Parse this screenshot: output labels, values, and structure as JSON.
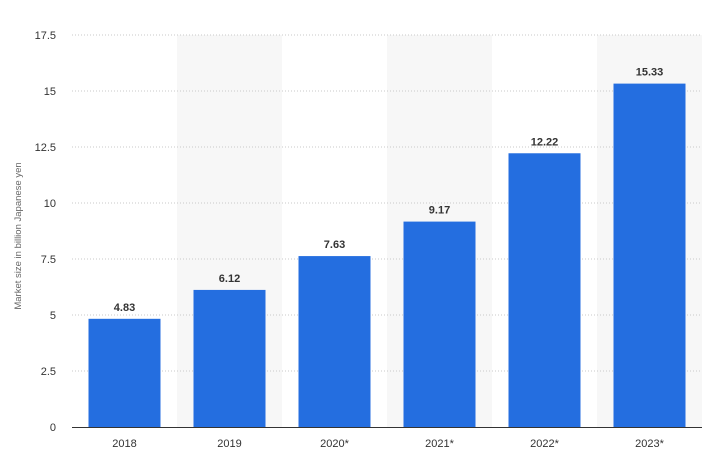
{
  "chart_data": {
    "type": "bar",
    "title": "",
    "xlabel": "",
    "ylabel": "Market size in billion Japanese yen",
    "categories": [
      "2018",
      "2019",
      "2020*",
      "2021*",
      "2022*",
      "2023*"
    ],
    "values": [
      4.83,
      6.12,
      7.63,
      9.17,
      12.22,
      15.33
    ],
    "value_labels": [
      "4.83",
      "6.12",
      "7.63",
      "9.17",
      "12.22",
      "15.33"
    ],
    "ylim": [
      0,
      17.5
    ],
    "yticks": [
      0,
      2.5,
      5,
      7.5,
      10,
      12.5,
      15,
      17.5
    ],
    "ytick_labels": [
      "0",
      "2.5",
      "5",
      "7.5",
      "10",
      "12.5",
      "15",
      "17.5"
    ],
    "grid": true,
    "legend": "none",
    "colors": {
      "bar": "#246EE0",
      "band": "#F7F7F7",
      "grid": "#C8C8C8",
      "axis": "#333333"
    }
  }
}
